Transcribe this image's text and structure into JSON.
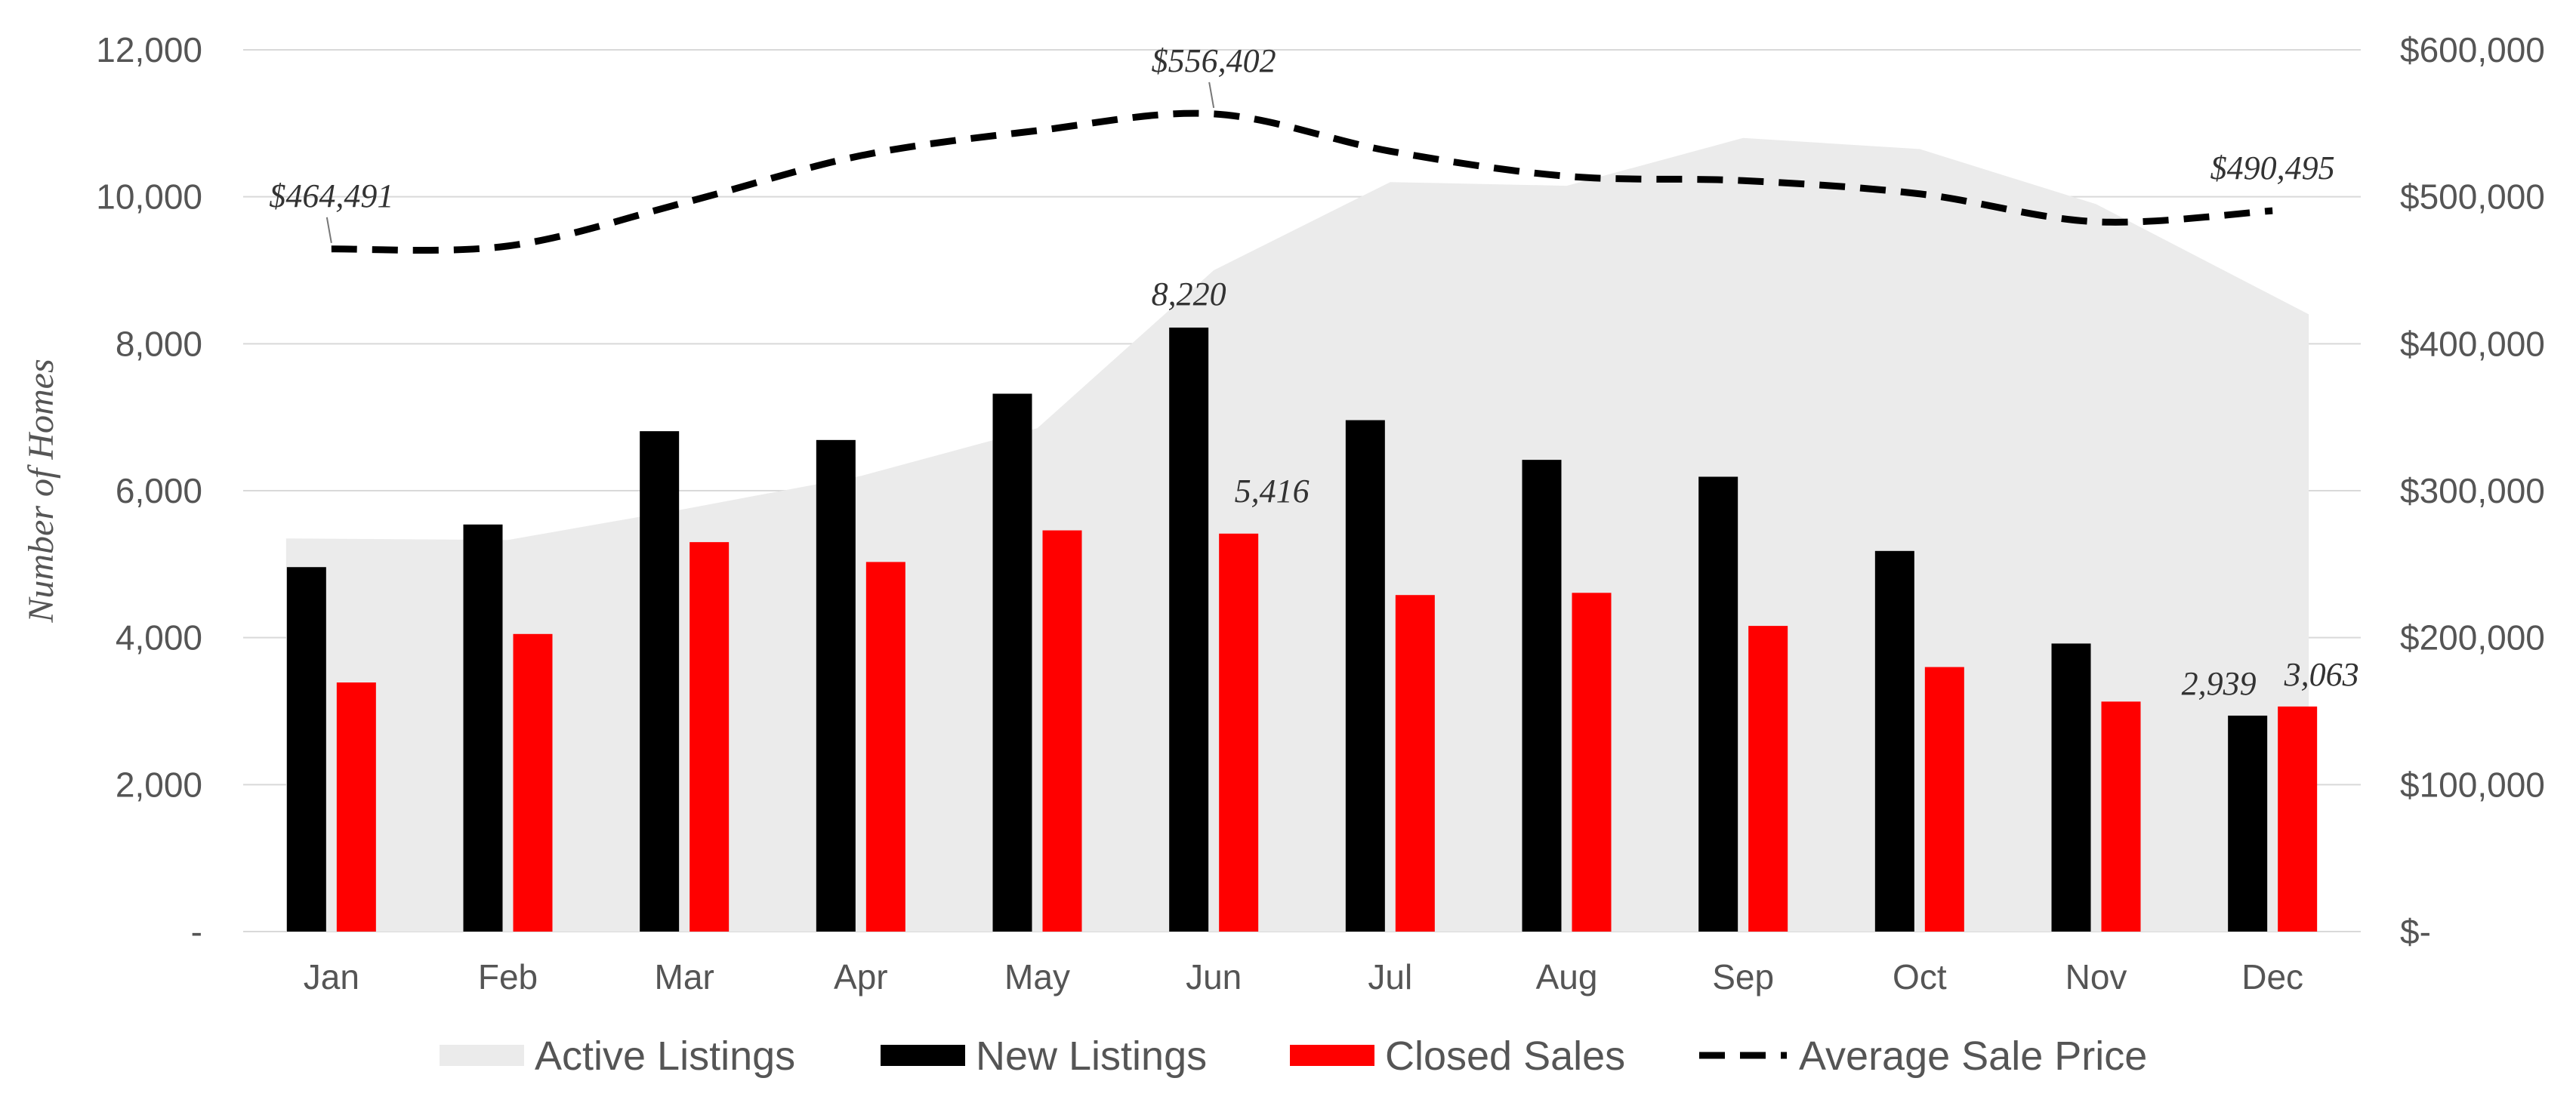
{
  "chart_data": {
    "type": "bar",
    "title": "",
    "categories": [
      "Jan",
      "Feb",
      "Mar",
      "Apr",
      "May",
      "Jun",
      "Jul",
      "Aug",
      "Sep",
      "Oct",
      "Nov",
      "Dec"
    ],
    "ylabel": "Number of Homes",
    "ylim": [
      0,
      12000
    ],
    "y2lim": [
      0,
      600000
    ],
    "yticks": [
      "-",
      "2,000",
      "4,000",
      "6,000",
      "8,000",
      "10,000",
      "12,000"
    ],
    "y2ticks": [
      "$-",
      "$100,000",
      "$200,000",
      "$300,000",
      "$400,000",
      "$500,000",
      "$600,000"
    ],
    "series": [
      {
        "name": "Active Listings",
        "type": "area",
        "axis": "left",
        "color": "#ebebeb",
        "values": [
          5350,
          5330,
          5750,
          6200,
          6850,
          9000,
          10200,
          10150,
          10800,
          10650,
          9900,
          8400
        ]
      },
      {
        "name": "New Listings",
        "type": "bar",
        "axis": "left",
        "color": "#000000",
        "values": [
          4960,
          5540,
          6810,
          6690,
          7320,
          8220,
          6960,
          6420,
          6190,
          5180,
          3920,
          2939
        ]
      },
      {
        "name": "Closed Sales",
        "type": "bar",
        "axis": "left",
        "color": "#ff0000",
        "values": [
          3390,
          4050,
          5300,
          5030,
          5460,
          5416,
          4580,
          4610,
          4160,
          3600,
          3130,
          3063
        ]
      },
      {
        "name": "Average Sale Price",
        "type": "line",
        "axis": "right",
        "color": "#000000",
        "dash": true,
        "values": [
          464491,
          466500,
          496000,
          528000,
          545000,
          556402,
          531000,
          514000,
          511000,
          502000,
          483000,
          490495
        ]
      }
    ],
    "annotations": [
      {
        "series": 3,
        "index": 0,
        "text": "$464,491"
      },
      {
        "series": 3,
        "index": 5,
        "text": "$556,402"
      },
      {
        "series": 3,
        "index": 11,
        "text": "$490,495"
      },
      {
        "series": 1,
        "index": 5,
        "text": "8,220"
      },
      {
        "series": 2,
        "index": 5,
        "text": "5,416"
      },
      {
        "series": 1,
        "index": 11,
        "text": "2,939"
      },
      {
        "series": 2,
        "index": 11,
        "text": "3,063"
      }
    ]
  }
}
